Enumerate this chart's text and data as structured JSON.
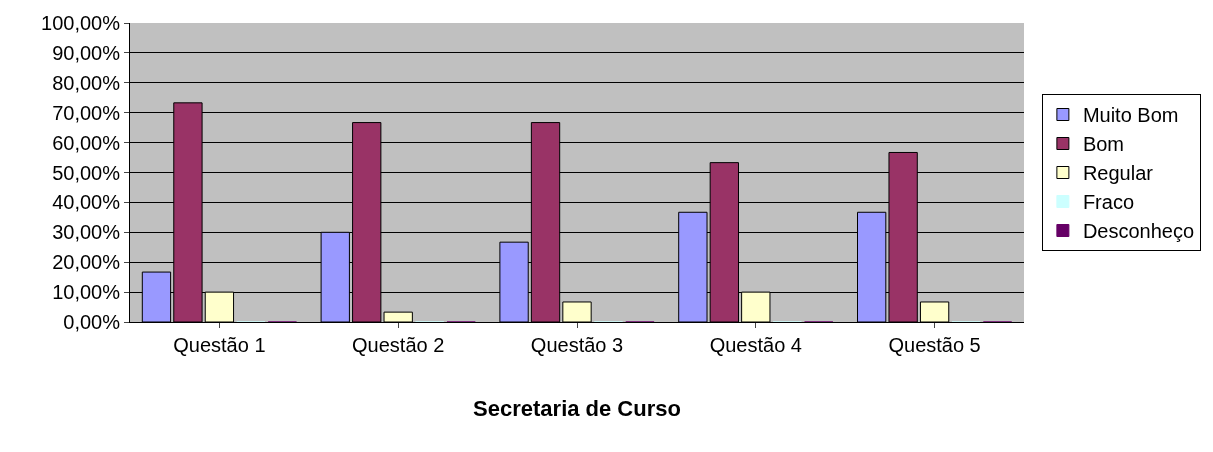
{
  "chart_data": {
    "type": "bar",
    "xlabel": "Secretaria de Curso",
    "categories": [
      "Questão 1",
      "Questão 2",
      "Questão 3",
      "Questão 4",
      "Questão 5"
    ],
    "series": [
      {
        "name": "Muito Bom",
        "color": "#9999ff",
        "values": [
          16.7,
          30,
          26.7,
          36.7,
          36.7
        ]
      },
      {
        "name": "Bom",
        "color": "#993366",
        "values": [
          73.3,
          66.7,
          66.7,
          53.3,
          56.7
        ]
      },
      {
        "name": "Regular",
        "color": "#ffffcc",
        "values": [
          10,
          3.3,
          6.7,
          10,
          6.7
        ]
      },
      {
        "name": "Fraco",
        "color": "#ccffff",
        "values": [
          0,
          0,
          0,
          0,
          0
        ]
      },
      {
        "name": "Desconheço",
        "color": "#660066",
        "values": [
          0,
          0,
          0,
          0,
          0
        ]
      }
    ],
    "ylim": [
      0,
      100
    ],
    "yticks": [
      {
        "value": 0,
        "label": "0,00%"
      },
      {
        "value": 10,
        "label": "10,00%"
      },
      {
        "value": 20,
        "label": "20,00%"
      },
      {
        "value": 30,
        "label": "30,00%"
      },
      {
        "value": 40,
        "label": "40,00%"
      },
      {
        "value": 50,
        "label": "50,00%"
      },
      {
        "value": 60,
        "label": "60,00%"
      },
      {
        "value": 70,
        "label": "70,00%"
      },
      {
        "value": 80,
        "label": "80,00%"
      },
      {
        "value": 90,
        "label": "90,00%"
      },
      {
        "value": 100,
        "label": "100,00%"
      }
    ],
    "grid": "y",
    "legend": "right"
  }
}
